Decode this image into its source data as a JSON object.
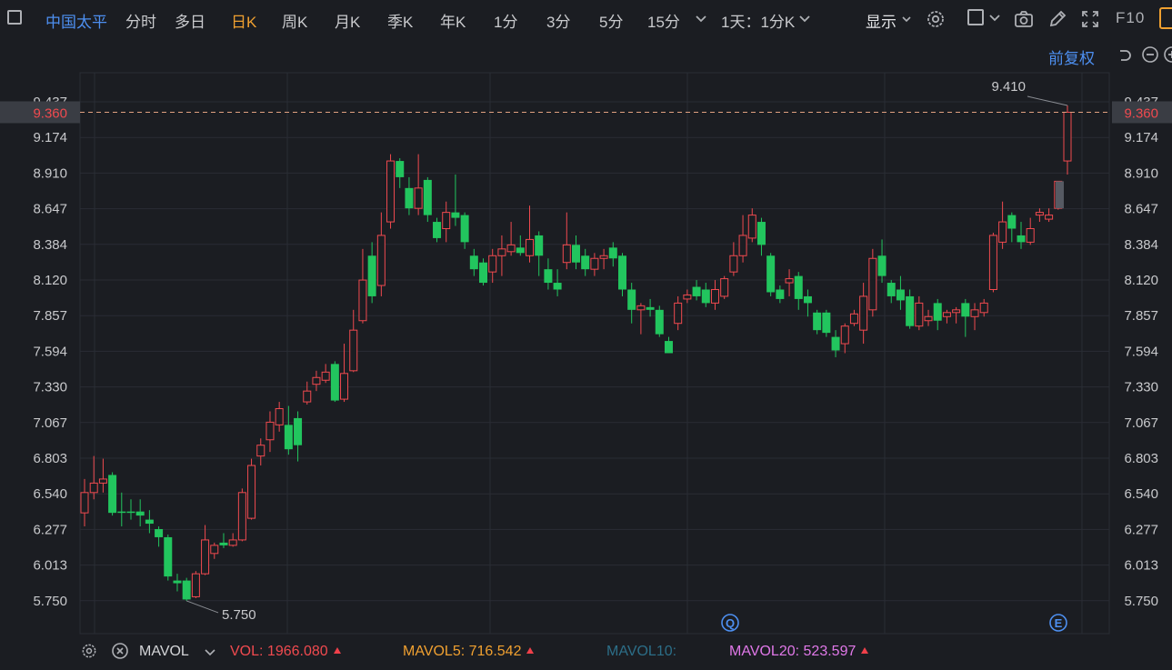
{
  "toolbar": {
    "stock_name": "中国太平",
    "tabs": [
      "分时",
      "多日",
      "日K",
      "周K",
      "月K",
      "季K",
      "年K",
      "1分",
      "3分",
      "5分",
      "15分"
    ],
    "active_tab": "日K",
    "period_combo": "1天：1分K",
    "display_label": "显示",
    "f10_label": "F10"
  },
  "adjust_label": "前复权",
  "colors": {
    "up": "#f04a4f",
    "down": "#22c55e",
    "accent": "#f0a030",
    "brand": "#4d8ff0"
  },
  "price_axis": {
    "ticks": [
      "9.437",
      "9.174",
      "8.910",
      "8.647",
      "8.384",
      "8.120",
      "7.857",
      "7.594",
      "7.330",
      "7.067",
      "6.803",
      "6.540",
      "6.277",
      "6.013",
      "5.750"
    ],
    "current_price": "9.360"
  },
  "chart_data": {
    "type": "candlestick",
    "high_marker": "9.410",
    "low_marker": "5.750",
    "ylim": [
      5.62,
      9.52
    ],
    "grid": true,
    "event_markers": [
      "Q",
      "E"
    ],
    "candles": [
      [
        6.4,
        6.55,
        6.65,
        6.3
      ],
      [
        6.55,
        6.62,
        6.82,
        6.5
      ],
      [
        6.62,
        6.65,
        6.8,
        6.55
      ],
      [
        6.68,
        6.4,
        6.7,
        6.38
      ],
      [
        6.41,
        6.4,
        6.55,
        6.3
      ],
      [
        6.41,
        6.4,
        6.5,
        6.35
      ],
      [
        6.41,
        6.38,
        6.5,
        6.3
      ],
      [
        6.35,
        6.32,
        6.42,
        6.25
      ],
      [
        6.28,
        6.22,
        6.3,
        6.15
      ],
      [
        6.22,
        5.93,
        6.24,
        5.9
      ],
      [
        5.9,
        5.88,
        5.95,
        5.82
      ],
      [
        5.9,
        5.76,
        5.92,
        5.75
      ],
      [
        5.78,
        5.95,
        5.97,
        5.77
      ],
      [
        5.95,
        6.2,
        6.31,
        5.94
      ],
      [
        6.1,
        6.16,
        6.18,
        6.06
      ],
      [
        6.18,
        6.16,
        6.25,
        6.14
      ],
      [
        6.16,
        6.2,
        6.25,
        6.15
      ],
      [
        6.2,
        6.55,
        6.58,
        6.19
      ],
      [
        6.36,
        6.75,
        6.8,
        6.35
      ],
      [
        6.82,
        6.9,
        6.95,
        6.75
      ],
      [
        6.94,
        7.07,
        7.15,
        6.85
      ],
      [
        7.05,
        7.17,
        7.22,
        7.0
      ],
      [
        7.05,
        6.87,
        7.19,
        6.83
      ],
      [
        7.1,
        6.9,
        7.15,
        6.78
      ],
      [
        7.22,
        7.3,
        7.37,
        7.2
      ],
      [
        7.35,
        7.4,
        7.45,
        7.3
      ],
      [
        7.38,
        7.44,
        7.5,
        7.36
      ],
      [
        7.5,
        7.23,
        7.52,
        7.22
      ],
      [
        7.24,
        7.43,
        7.65,
        7.22
      ],
      [
        7.45,
        7.75,
        7.9,
        7.44
      ],
      [
        7.82,
        8.12,
        8.35,
        7.8
      ],
      [
        8.3,
        8.0,
        8.4,
        7.95
      ],
      [
        8.08,
        8.45,
        8.62,
        8.0
      ],
      [
        8.55,
        9.0,
        9.05,
        8.5
      ],
      [
        9.0,
        8.88,
        9.02,
        8.8
      ],
      [
        8.8,
        8.65,
        8.88,
        8.6
      ],
      [
        8.65,
        8.8,
        9.05,
        8.6
      ],
      [
        8.86,
        8.6,
        8.88,
        8.55
      ],
      [
        8.55,
        8.43,
        8.58,
        8.4
      ],
      [
        8.5,
        8.62,
        8.7,
        8.4
      ],
      [
        8.62,
        8.58,
        8.9,
        8.52
      ],
      [
        8.6,
        8.4,
        8.62,
        8.35
      ],
      [
        8.3,
        8.2,
        8.35,
        8.15
      ],
      [
        8.25,
        8.1,
        8.28,
        8.08
      ],
      [
        8.18,
        8.3,
        8.35,
        8.1
      ],
      [
        8.3,
        8.35,
        8.45,
        8.15
      ],
      [
        8.33,
        8.38,
        8.55,
        8.3
      ],
      [
        8.36,
        8.32,
        8.45,
        8.3
      ],
      [
        8.3,
        8.42,
        8.67,
        8.25
      ],
      [
        8.45,
        8.3,
        8.48,
        8.15
      ],
      [
        8.2,
        8.1,
        8.28,
        8.05
      ],
      [
        8.1,
        8.05,
        8.2,
        8.0
      ],
      [
        8.25,
        8.38,
        8.62,
        8.2
      ],
      [
        8.38,
        8.25,
        8.45,
        8.2
      ],
      [
        8.3,
        8.2,
        8.35,
        8.15
      ],
      [
        8.2,
        8.28,
        8.32,
        8.15
      ],
      [
        8.28,
        8.3,
        8.35,
        8.2
      ],
      [
        8.36,
        8.28,
        8.4,
        8.22
      ],
      [
        8.3,
        8.05,
        8.32,
        8.0
      ],
      [
        8.05,
        7.9,
        8.1,
        7.8
      ],
      [
        7.9,
        7.93,
        7.95,
        7.72
      ],
      [
        7.92,
        7.9,
        7.98,
        7.85
      ],
      [
        7.9,
        7.72,
        7.93,
        7.7
      ],
      [
        7.67,
        7.58,
        7.7,
        7.58
      ],
      [
        7.8,
        7.95,
        8.0,
        7.75
      ],
      [
        7.98,
        8.01,
        8.05,
        7.95
      ],
      [
        8.07,
        8.0,
        8.12,
        7.97
      ],
      [
        8.05,
        7.95,
        8.1,
        7.92
      ],
      [
        7.95,
        8.05,
        8.12,
        7.9
      ],
      [
        8.0,
        8.13,
        8.15,
        7.98
      ],
      [
        8.18,
        8.3,
        8.4,
        8.15
      ],
      [
        8.3,
        8.45,
        8.6,
        8.25
      ],
      [
        8.43,
        8.6,
        8.65,
        8.4
      ],
      [
        8.55,
        8.38,
        8.58,
        8.3
      ],
      [
        8.3,
        8.03,
        8.32,
        8.0
      ],
      [
        8.05,
        7.98,
        8.08,
        7.95
      ],
      [
        8.1,
        8.13,
        8.2,
        8.0
      ],
      [
        8.15,
        7.98,
        8.18,
        7.9
      ],
      [
        8.0,
        7.95,
        8.05,
        7.85
      ],
      [
        7.88,
        7.75,
        7.9,
        7.72
      ],
      [
        7.88,
        7.73,
        7.9,
        7.7
      ],
      [
        7.7,
        7.6,
        7.75,
        7.55
      ],
      [
        7.65,
        7.78,
        7.8,
        7.58
      ],
      [
        7.8,
        7.87,
        7.9,
        7.78
      ],
      [
        7.75,
        8.0,
        8.1,
        7.65
      ],
      [
        7.9,
        8.28,
        8.35,
        7.85
      ],
      [
        8.3,
        8.15,
        8.42,
        8.1
      ],
      [
        8.1,
        8.0,
        8.12,
        7.95
      ],
      [
        8.05,
        7.97,
        8.15,
        7.9
      ],
      [
        8.0,
        7.78,
        8.05,
        7.76
      ],
      [
        7.78,
        7.95,
        8.0,
        7.75
      ],
      [
        7.82,
        7.85,
        7.9,
        7.78
      ],
      [
        7.95,
        7.82,
        7.98,
        7.75
      ],
      [
        7.85,
        7.88,
        7.9,
        7.8
      ],
      [
        7.88,
        7.9,
        7.92,
        7.8
      ],
      [
        7.95,
        7.85,
        7.98,
        7.7
      ],
      [
        7.85,
        7.9,
        7.95,
        7.75
      ],
      [
        7.88,
        7.95,
        7.98,
        7.85
      ],
      [
        8.05,
        8.45,
        8.47,
        8.03
      ],
      [
        8.4,
        8.55,
        8.7,
        8.35
      ],
      [
        8.6,
        8.5,
        8.62,
        8.4
      ],
      [
        8.45,
        8.4,
        8.55,
        8.35
      ],
      [
        8.4,
        8.5,
        8.58,
        8.38
      ],
      [
        8.6,
        8.62,
        8.65,
        8.55
      ],
      [
        8.57,
        8.6,
        8.65,
        8.55
      ],
      [
        8.65,
        8.85,
        8.85,
        8.64
      ],
      [
        9.0,
        9.36,
        9.41,
        8.9
      ]
    ]
  },
  "indicator": {
    "name": "MAVOL",
    "vol_label": "VOL:",
    "vol_value": "1966.080",
    "mavol5_label": "MAVOL5:",
    "mavol5_value": "716.542",
    "mavol10_label": "MAVOL10:",
    "mavol20_label": "MAVOL20:",
    "mavol20_value": "523.597"
  }
}
